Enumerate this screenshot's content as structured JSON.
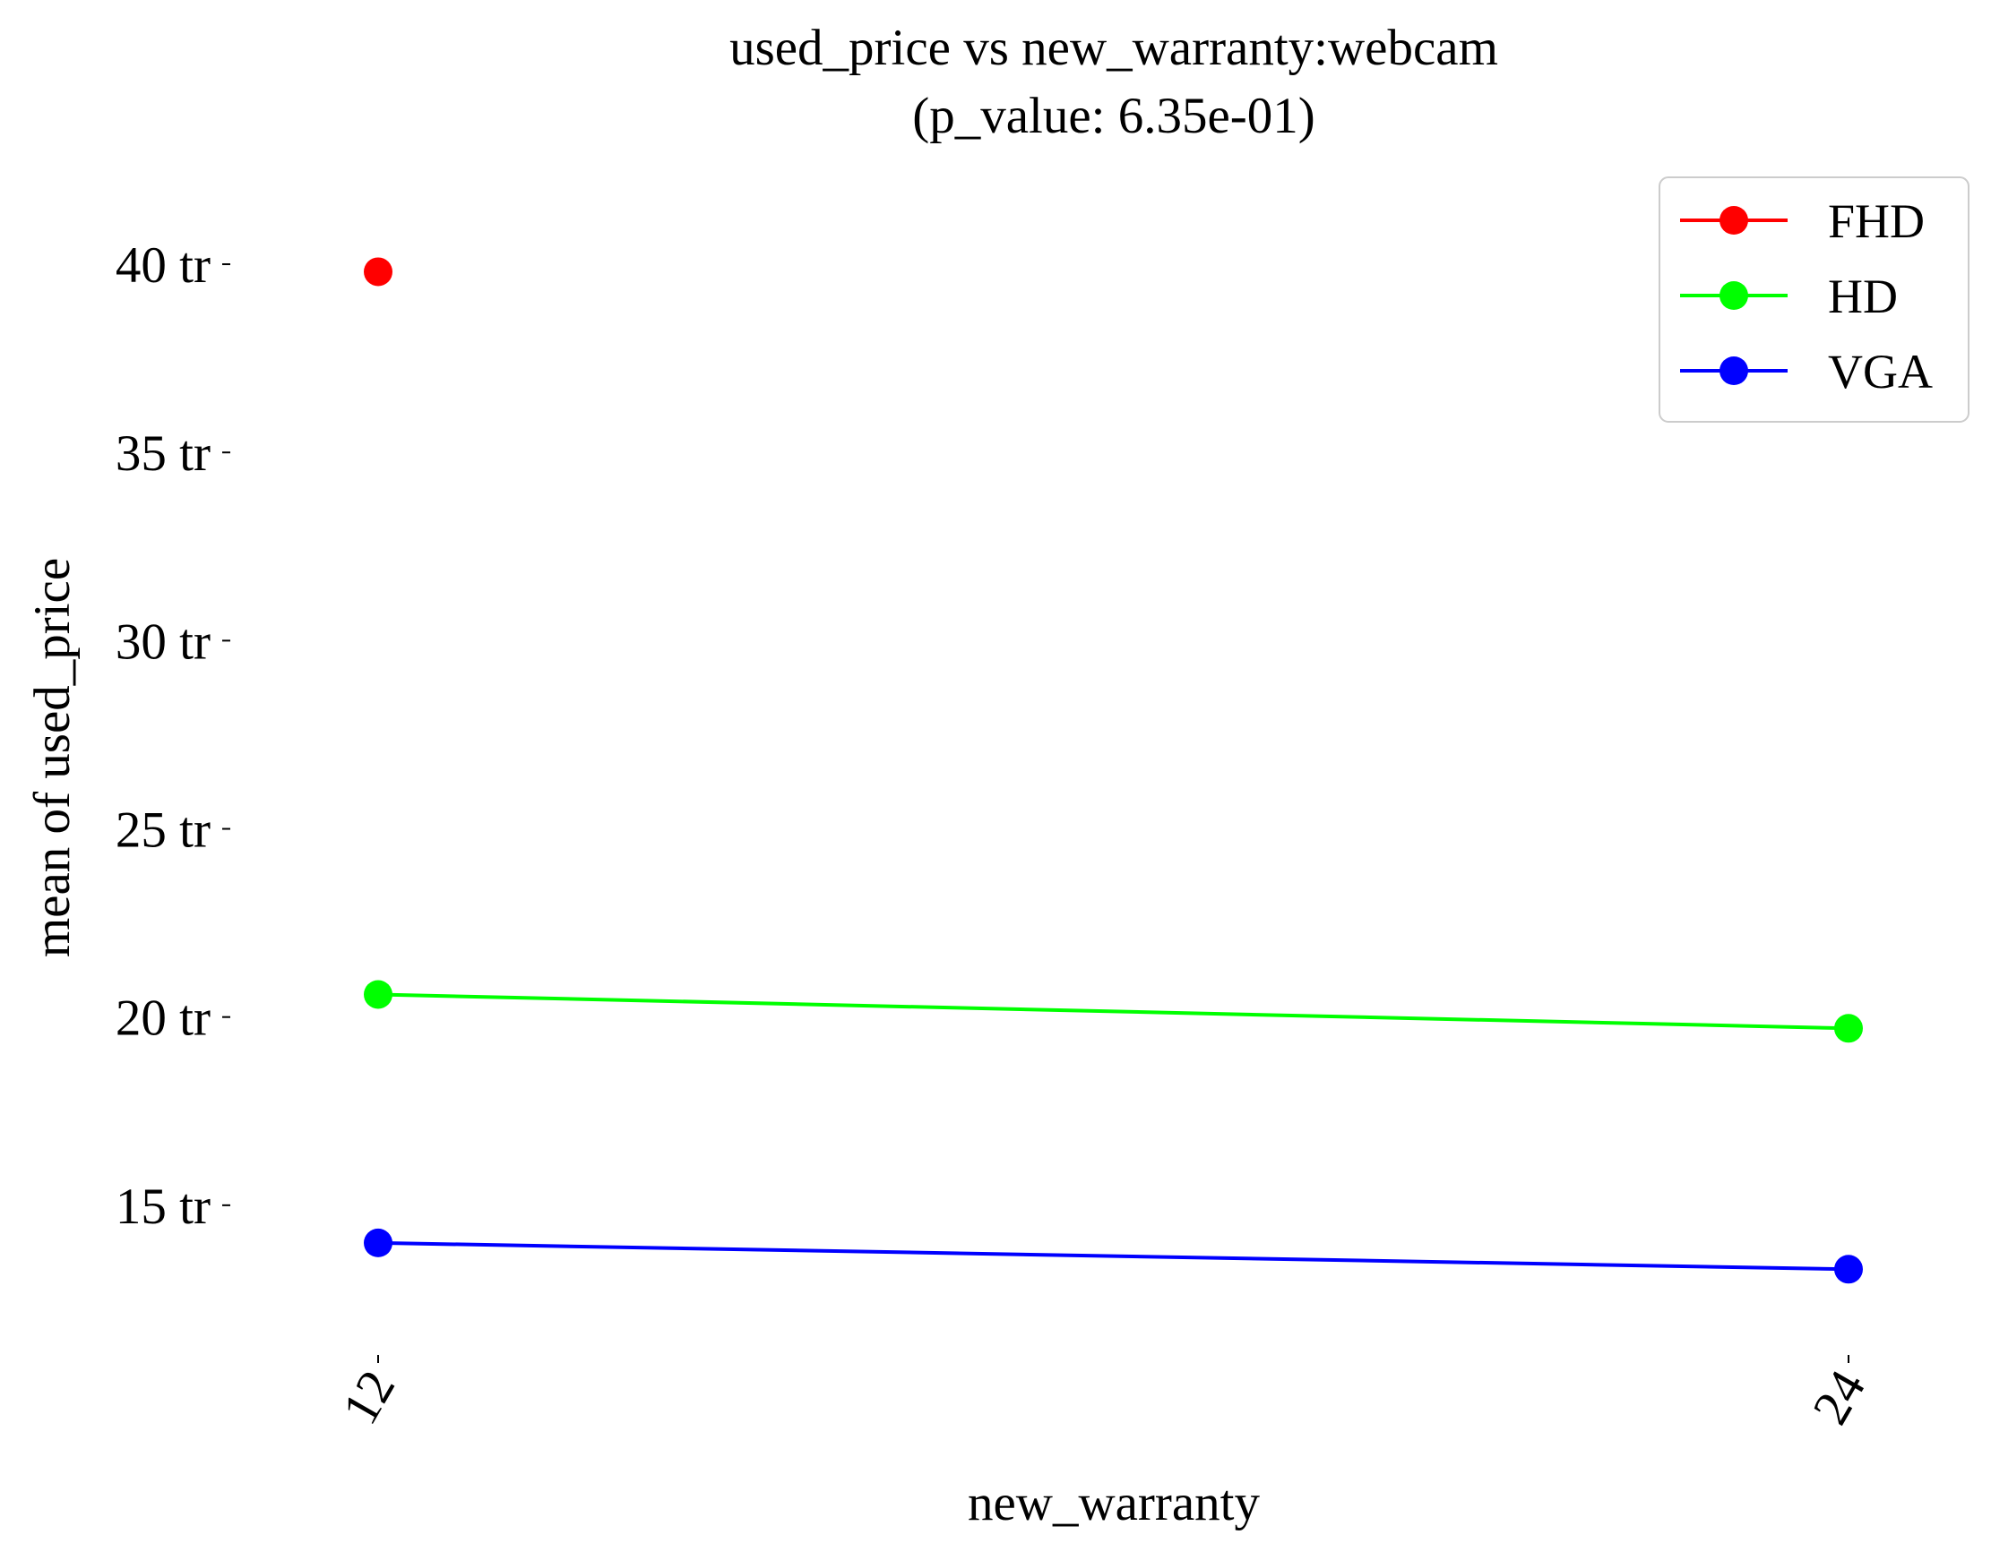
{
  "chart_data": {
    "type": "line",
    "title": "used_price vs new_warranty:webcam",
    "subtitle": "(p_value: 6.35e-01)",
    "xlabel": "new_warranty",
    "ylabel": "mean of used_price",
    "categories": [
      "12",
      "24"
    ],
    "y_ticks": [
      {
        "value": 15,
        "label": "15 tr"
      },
      {
        "value": 20,
        "label": "20 tr"
      },
      {
        "value": 25,
        "label": "25 tr"
      },
      {
        "value": 30,
        "label": "30 tr"
      },
      {
        "value": 35,
        "label": "35 tr"
      },
      {
        "value": 40,
        "label": "40 tr"
      }
    ],
    "ylim": [
      10.5,
      41.5
    ],
    "grid": false,
    "legend_position": "top-right",
    "series": [
      {
        "name": "FHD",
        "color": "#ff0000",
        "values": [
          39.8,
          null
        ]
      },
      {
        "name": "HD",
        "color": "#00ff00",
        "values": [
          20.6,
          19.7
        ]
      },
      {
        "name": "VGA",
        "color": "#0000ff",
        "values": [
          14.0,
          13.3
        ]
      }
    ]
  }
}
